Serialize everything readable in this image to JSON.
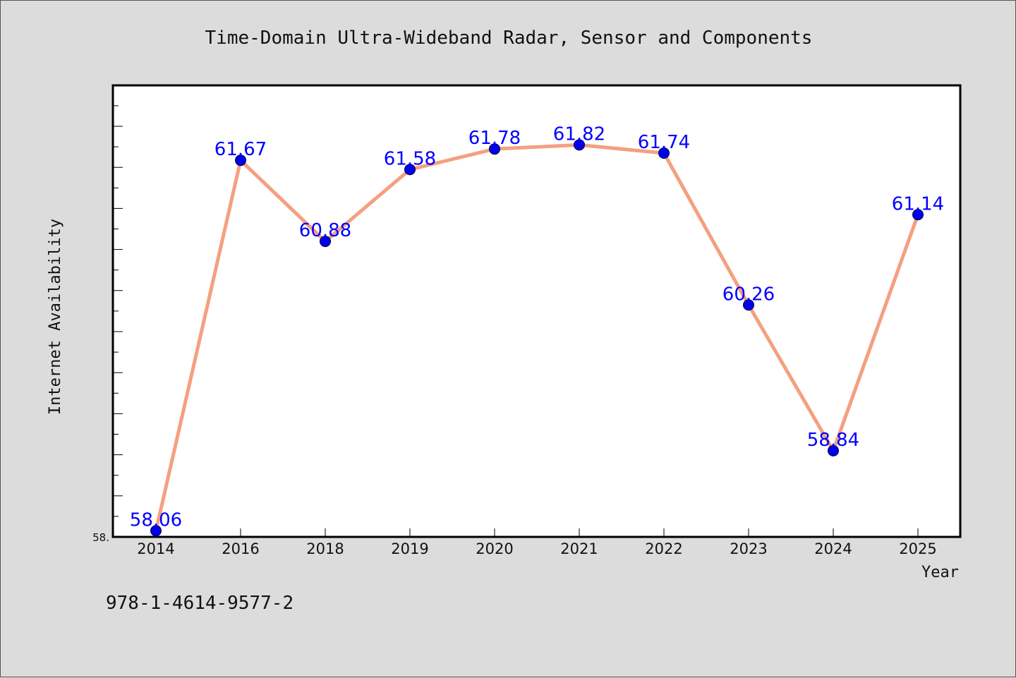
{
  "chart_data": {
    "type": "line",
    "title": "Time-Domain Ultra-Wideband Radar, Sensor and Components",
    "xlabel": "Year",
    "ylabel": "Internet Availability",
    "categories": [
      "2014",
      "2016",
      "2018",
      "2019",
      "2020",
      "2021",
      "2022",
      "2023",
      "2024",
      "2025"
    ],
    "series": [
      {
        "values": [
          58.06,
          61.67,
          60.88,
          61.58,
          61.78,
          61.82,
          61.74,
          60.26,
          58.84,
          61.14
        ],
        "line_color": "#f4a080",
        "marker_color": "#0000ee",
        "label_color": "#0000ff"
      }
    ],
    "data_labels": [
      "58.06",
      "61.67",
      "60.88",
      "61.58",
      "61.78",
      "61.82",
      "61.74",
      "60.26",
      "58.84",
      "61.14"
    ],
    "ylim": [
      58.0,
      62.4
    ],
    "y_tick_label": "58.",
    "grid": false,
    "legend": "none"
  },
  "footer_code": "978-1-4614-9577-2",
  "colors": {
    "background": "#dcdcdc",
    "plot_background": "#ffffff",
    "axis": "#000000"
  }
}
